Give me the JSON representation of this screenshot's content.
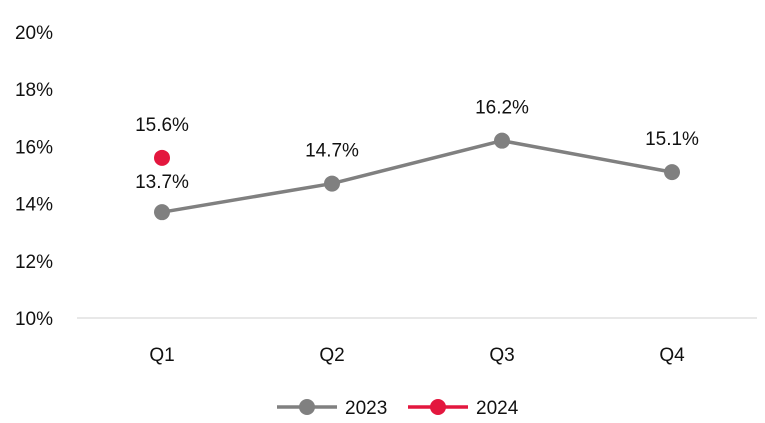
{
  "chart_data": {
    "type": "line",
    "categories": [
      "Q1",
      "Q2",
      "Q3",
      "Q4"
    ],
    "series": [
      {
        "name": "2023",
        "values": [
          13.7,
          14.7,
          16.2,
          15.1
        ],
        "labels": [
          "13.7%",
          "14.7%",
          "16.2%",
          "15.1%"
        ],
        "color": "#808080"
      },
      {
        "name": "2024",
        "values": [
          15.6,
          null,
          null,
          null
        ],
        "labels": [
          "15.6%",
          null,
          null,
          null
        ],
        "color": "#e3173e"
      }
    ],
    "ylim": [
      10,
      20
    ],
    "yticks": [
      10,
      12,
      14,
      16,
      18,
      20
    ],
    "ytick_labels": [
      "10%",
      "12%",
      "14%",
      "16%",
      "18%",
      "20%"
    ],
    "grid": false,
    "legend_position": "bottom"
  }
}
